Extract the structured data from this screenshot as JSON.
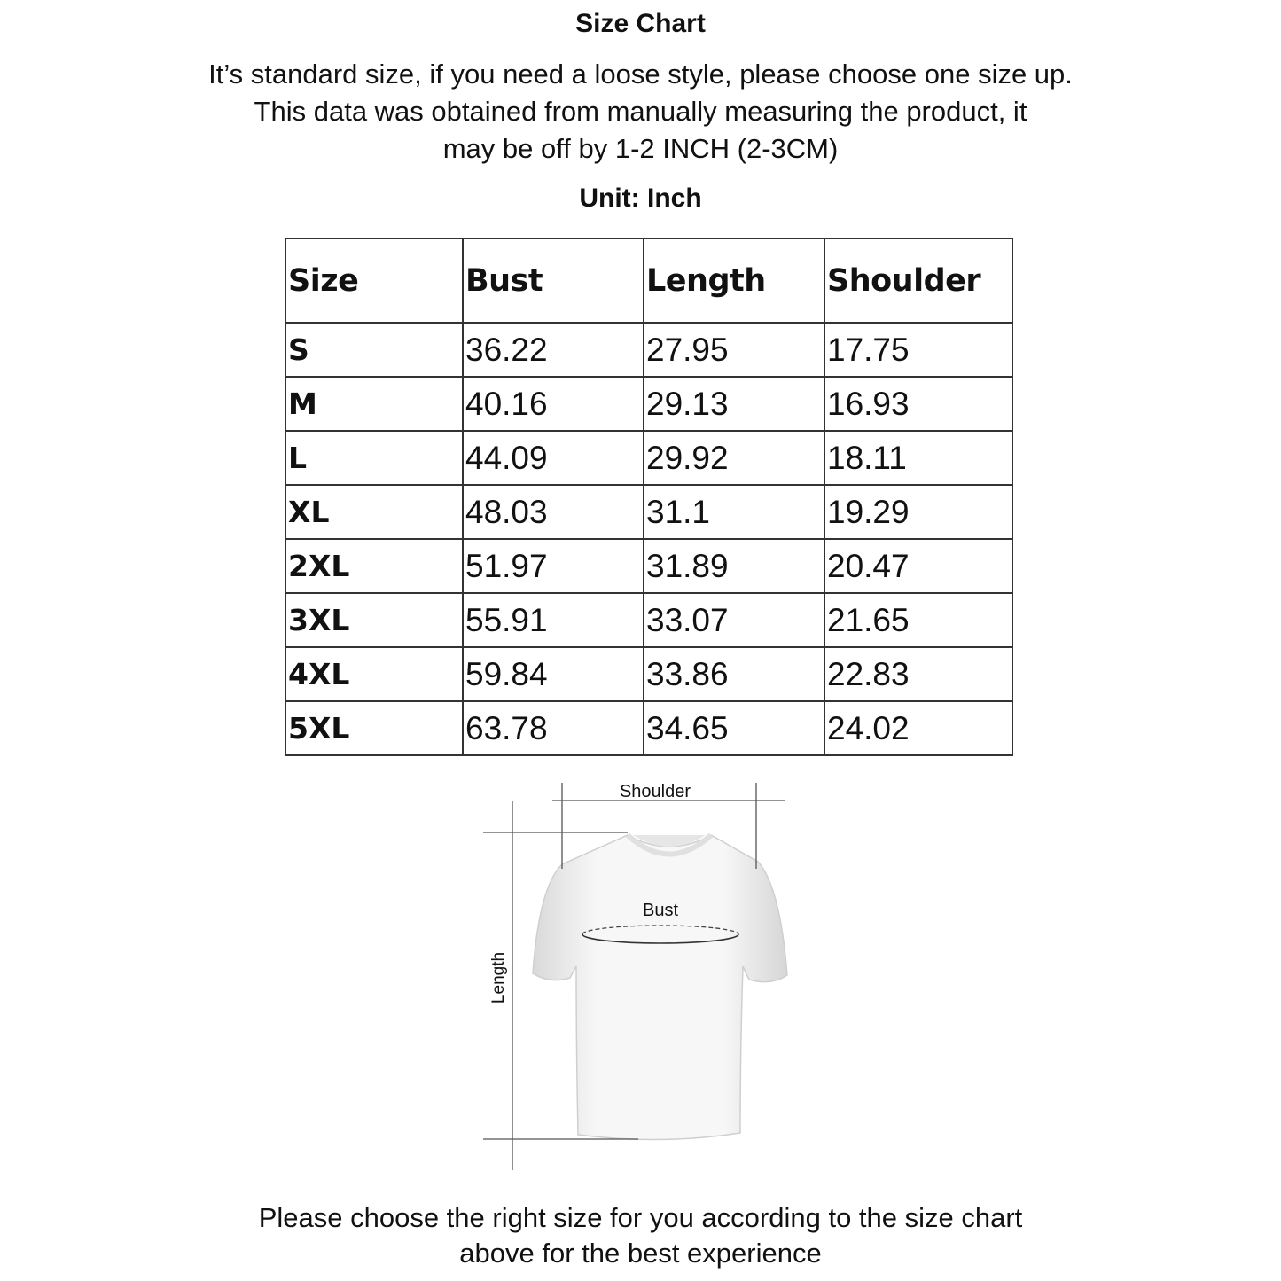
{
  "title": "Size Chart",
  "intro_lines": [
    "It’s standard size, if you need a loose style, please choose one size up.",
    "This data was obtained from manually measuring the product, it",
    "may be off by 1-2 INCH (2-3CM)"
  ],
  "unit": "Unit: Inch",
  "table": {
    "headers": [
      "Size",
      "Bust",
      "Length",
      "Shoulder"
    ],
    "rows": [
      [
        "S",
        "36.22",
        "27.95",
        "17.75"
      ],
      [
        "M",
        "40.16",
        "29.13",
        "16.93"
      ],
      [
        "L",
        "44.09",
        "29.92",
        "18.11"
      ],
      [
        "XL",
        "48.03",
        "31.1",
        "19.29"
      ],
      [
        "2XL",
        "51.97",
        "31.89",
        "20.47"
      ],
      [
        "3XL",
        "55.91",
        "33.07",
        "21.65"
      ],
      [
        "4XL",
        "59.84",
        "33.86",
        "22.83"
      ],
      [
        "5XL",
        "63.78",
        "34.65",
        "24.02"
      ]
    ]
  },
  "diagram": {
    "shoulder_label": "Shoulder",
    "bust_label": "Bust",
    "length_label": "Length"
  },
  "footer_lines": [
    "Please choose the right size for you according to the size chart",
    "above for the best experience"
  ]
}
